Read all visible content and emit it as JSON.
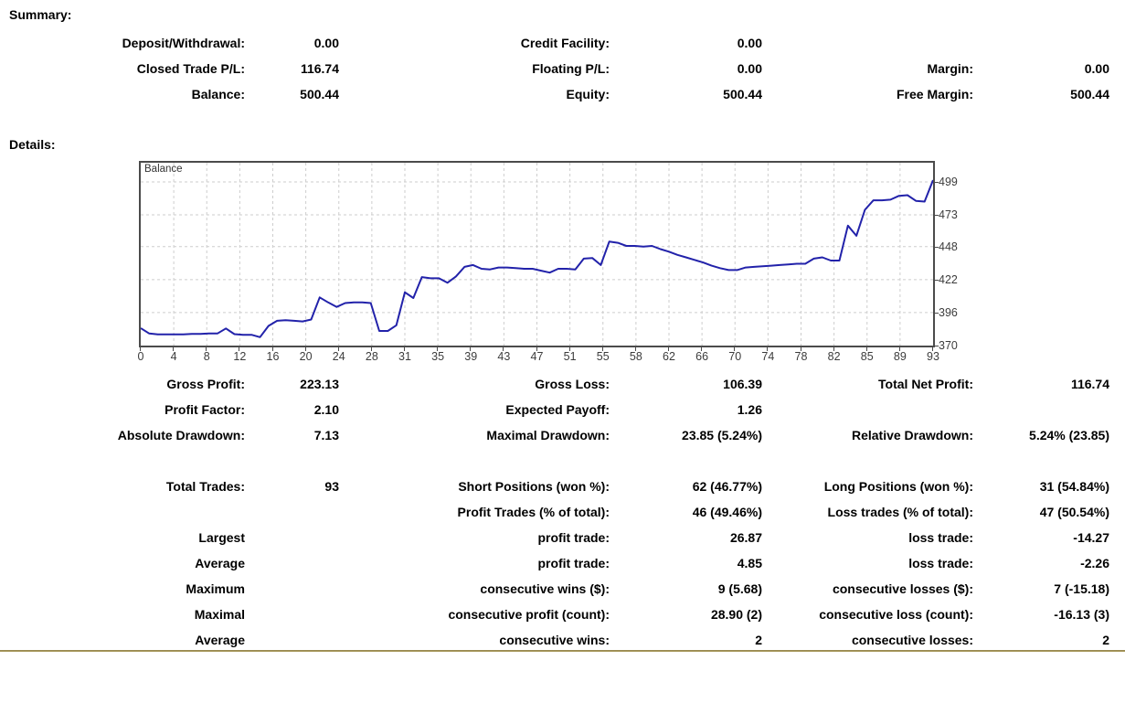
{
  "summary": {
    "heading": "Summary:",
    "rows": [
      [
        "Deposit/Withdrawal:",
        "0.00",
        "Credit Facility:",
        "0.00",
        "",
        ""
      ],
      [
        "Closed Trade P/L:",
        "116.74",
        "Floating P/L:",
        "0.00",
        "Margin:",
        "0.00"
      ],
      [
        "Balance:",
        "500.44",
        "Equity:",
        "500.44",
        "Free Margin:",
        "500.44"
      ]
    ]
  },
  "details": {
    "heading": "Details:",
    "rows_block1": [
      [
        "Gross Profit:",
        "223.13",
        "Gross Loss:",
        "106.39",
        "Total Net Profit:",
        "116.74"
      ],
      [
        "Profit Factor:",
        "2.10",
        "Expected Payoff:",
        "1.26",
        "",
        ""
      ],
      [
        "Absolute Drawdown:",
        "7.13",
        "Maximal Drawdown:",
        "23.85 (5.24%)",
        "Relative Drawdown:",
        "5.24% (23.85)"
      ]
    ],
    "rows_block2": [
      [
        "Total Trades:",
        "93",
        "Short Positions (won %):",
        "62 (46.77%)",
        "Long Positions (won %):",
        "31 (54.84%)"
      ],
      [
        "",
        "",
        "Profit Trades (% of total):",
        "46 (49.46%)",
        "Loss trades (% of total):",
        "47 (50.54%)"
      ],
      [
        "Largest",
        "",
        "profit trade:",
        "26.87",
        "loss trade:",
        "-14.27"
      ],
      [
        "Average",
        "",
        "profit trade:",
        "4.85",
        "loss trade:",
        "-2.26"
      ],
      [
        "Maximum",
        "",
        "consecutive wins ($):",
        "9 (5.68)",
        "consecutive losses ($):",
        "7 (-15.18)"
      ],
      [
        "Maximal",
        "",
        "consecutive profit (count):",
        "28.90 (2)",
        "consecutive loss (count):",
        "-16.13 (3)"
      ],
      [
        "Average",
        "",
        "consecutive wins:",
        "2",
        "consecutive losses:",
        "2"
      ]
    ]
  },
  "chart_data": {
    "type": "line",
    "title": "Balance",
    "xlabel": "",
    "ylabel": "",
    "xlim": [
      0,
      93
    ],
    "ylim": [
      370,
      514.1
    ],
    "grid": true,
    "x_tick_labels": [
      "0",
      "4",
      "8",
      "12",
      "16",
      "20",
      "24",
      "28",
      "31",
      "35",
      "39",
      "43",
      "47",
      "51",
      "55",
      "58",
      "62",
      "66",
      "70",
      "74",
      "78",
      "82",
      "85",
      "89",
      "93"
    ],
    "y_tick_labels": [
      499,
      473,
      448,
      422,
      396,
      370
    ],
    "series": [
      {
        "name": "Balance",
        "x_start": 0,
        "x_step": 1,
        "values": [
          383.7,
          379.5,
          378.8,
          378.8,
          378.8,
          378.8,
          379.2,
          379.2,
          379.5,
          379.5,
          383.5,
          379.0,
          378.5,
          378.5,
          376.6,
          385.5,
          389.5,
          390.0,
          389.5,
          389.0,
          390.5,
          408.0,
          404.0,
          400.5,
          403.5,
          404.0,
          404.0,
          403.5,
          381.5,
          381.5,
          386.0,
          412.0,
          407.5,
          424.0,
          423.0,
          423.0,
          419.5,
          424.5,
          432.0,
          433.5,
          430.5,
          430.0,
          431.5,
          431.5,
          431.0,
          430.5,
          430.5,
          429.0,
          427.5,
          430.5,
          430.5,
          430.0,
          438.5,
          439.0,
          433.5,
          452.0,
          451.0,
          448.5,
          448.5,
          448.0,
          448.5,
          446.0,
          444.0,
          441.5,
          439.5,
          437.5,
          435.5,
          433.0,
          431.0,
          429.5,
          429.5,
          431.5,
          432.0,
          432.5,
          433.0,
          433.5,
          434.0,
          434.5,
          434.5,
          438.5,
          439.5,
          437.0,
          437.0,
          464.5,
          456.5,
          477.0,
          484.5,
          484.5,
          485.0,
          488.0,
          488.5,
          484.0,
          483.5,
          500.4
        ]
      }
    ],
    "colors": {
      "line": "#2222aa",
      "grid": "#cdcdcd",
      "border": "#4b4b4b",
      "axis_text": "#3c3c3c",
      "divider_gold": "#9e8e55",
      "text": "#000000",
      "background": "#ffffff"
    }
  }
}
